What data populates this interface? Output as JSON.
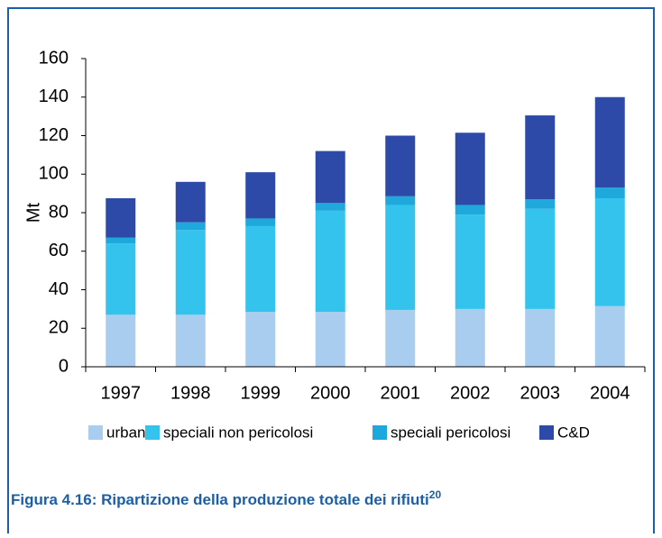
{
  "chart_data": {
    "type": "stacked_bar",
    "ylabel": "Mt",
    "caption": "Figura 4.16: Ripartizione della produzione totale dei rifiuti",
    "caption_sup": "20",
    "categories": [
      "1997",
      "1998",
      "1999",
      "2000",
      "2001",
      "2002",
      "2003",
      "2004"
    ],
    "series": [
      {
        "name": "urbani",
        "color": "#a9cdee",
        "values": [
          27,
          27,
          28.5,
          28.5,
          29.5,
          30,
          30,
          31.5
        ]
      },
      {
        "name": "speciali non pericolosi",
        "color": "#33c3ec",
        "values": [
          37,
          44,
          44.5,
          52.5,
          54.5,
          49,
          52,
          56
        ]
      },
      {
        "name": "speciali pericolosi",
        "color": "#1ea8dc",
        "values": [
          3,
          4,
          4,
          4,
          4.5,
          5,
          5,
          5.5
        ]
      },
      {
        "name": "C&D",
        "color": "#2e4aa8",
        "values": [
          20.5,
          21,
          24,
          27,
          31.5,
          37.5,
          43.5,
          47
        ]
      }
    ],
    "ylim": [
      0,
      160
    ],
    "yticks": [
      0,
      20,
      40,
      60,
      80,
      100,
      120,
      140,
      160
    ],
    "legend": "bottom"
  }
}
